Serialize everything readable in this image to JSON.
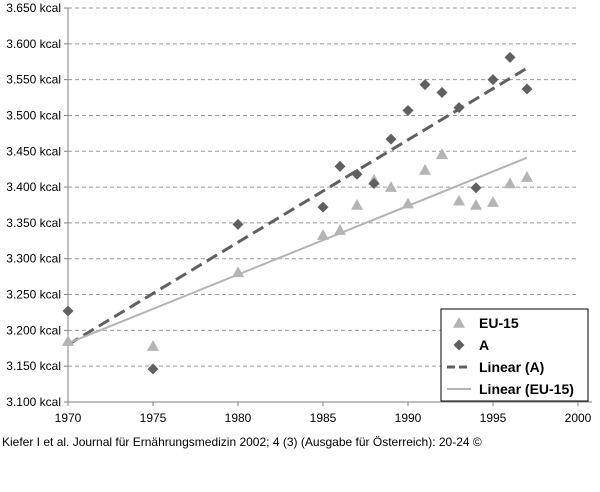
{
  "chart_data": {
    "type": "scatter",
    "title": "",
    "xlabel": "",
    "ylabel": "",
    "xlim": [
      1970,
      2000
    ],
    "ylim": [
      3100,
      3650
    ],
    "x_ticks": [
      1970,
      1975,
      1980,
      1985,
      1990,
      1995,
      2000
    ],
    "y_ticks": [
      3100,
      3150,
      3200,
      3250,
      3300,
      3350,
      3400,
      3450,
      3500,
      3550,
      3600,
      3650
    ],
    "y_tick_labels": [
      "3.100 kcal",
      "3.150 kcal",
      "3.200 kcal",
      "3.250 kcal",
      "3.300 kcal",
      "3.350 kcal",
      "3.400 kcal",
      "3.450 kcal",
      "3.500 kcal",
      "3.550 kcal",
      "3.600 kcal",
      "3.650 kcal"
    ],
    "grid": "horizontal dashed",
    "legend_placement": "bottom-right",
    "series": [
      {
        "name": "EU-15",
        "marker": "triangle",
        "color": "#b4b4b4",
        "points": [
          {
            "x": 1970,
            "y": 3185
          },
          {
            "x": 1975,
            "y": 3178
          },
          {
            "x": 1980,
            "y": 3281
          },
          {
            "x": 1985,
            "y": 3333
          },
          {
            "x": 1986,
            "y": 3340
          },
          {
            "x": 1987,
            "y": 3375
          },
          {
            "x": 1988,
            "y": 3410
          },
          {
            "x": 1989,
            "y": 3400
          },
          {
            "x": 1990,
            "y": 3377
          },
          {
            "x": 1991,
            "y": 3424
          },
          {
            "x": 1992,
            "y": 3446
          },
          {
            "x": 1993,
            "y": 3381
          },
          {
            "x": 1994,
            "y": 3375
          },
          {
            "x": 1995,
            "y": 3379
          },
          {
            "x": 1996,
            "y": 3405
          },
          {
            "x": 1997,
            "y": 3414
          }
        ]
      },
      {
        "name": "A",
        "marker": "diamond",
        "color": "#606060",
        "points": [
          {
            "x": 1970,
            "y": 3227
          },
          {
            "x": 1975,
            "y": 3146
          },
          {
            "x": 1980,
            "y": 3348
          },
          {
            "x": 1985,
            "y": 3372
          },
          {
            "x": 1986,
            "y": 3429
          },
          {
            "x": 1987,
            "y": 3418
          },
          {
            "x": 1988,
            "y": 3405
          },
          {
            "x": 1989,
            "y": 3467
          },
          {
            "x": 1990,
            "y": 3507
          },
          {
            "x": 1991,
            "y": 3543
          },
          {
            "x": 1992,
            "y": 3532
          },
          {
            "x": 1993,
            "y": 3511
          },
          {
            "x": 1994,
            "y": 3399
          },
          {
            "x": 1995,
            "y": 3550
          },
          {
            "x": 1996,
            "y": 3581
          },
          {
            "x": 1997,
            "y": 3537
          }
        ]
      }
    ],
    "trendlines": [
      {
        "name": "Linear (A)",
        "style": "dashed",
        "color": "#606060",
        "from": {
          "x": 1970,
          "y": 3180
        },
        "to": {
          "x": 1997,
          "y": 3566
        }
      },
      {
        "name": "Linear (EU-15)",
        "style": "solid",
        "color": "#b4b4b4",
        "from": {
          "x": 1970,
          "y": 3182
        },
        "to": {
          "x": 1997,
          "y": 3441
        }
      }
    ]
  },
  "caption": "Kiefer I et al. Journal für Ernährungsmedizin 2002; 4 (3) (Ausgabe für Österreich): 20-24 ©"
}
